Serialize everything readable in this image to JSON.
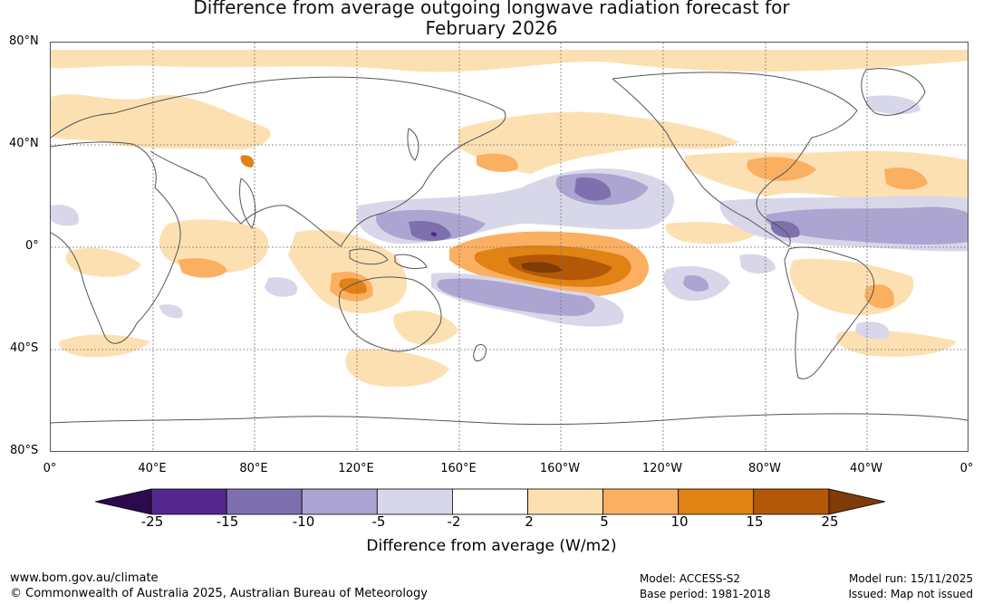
{
  "title_line1": "Difference from average outgoing longwave radiation forecast for",
  "title_line2": "February 2026",
  "lat_labels": [
    "80°N",
    "40°N",
    "0°",
    "40°S",
    "80°S"
  ],
  "lon_labels": [
    "0°",
    "40°E",
    "80°E",
    "120°E",
    "160°E",
    "160°W",
    "120°W",
    "80°W",
    "40°W",
    "0°"
  ],
  "colorbar": {
    "ticks": [
      "-25",
      "-15",
      "-10",
      "-5",
      "-2",
      "2",
      "5",
      "10",
      "15",
      "25"
    ],
    "colors": [
      "#2d0a4e",
      "#54278f",
      "#7e6fae",
      "#aca5d1",
      "#d8d7ea",
      "#ffffff",
      "#fde0b2",
      "#fbb061",
      "#e08214",
      "#b35806",
      "#7f3b08"
    ],
    "label": "Difference from average (W/m2)"
  },
  "footer": {
    "website": "www.bom.gov.au/climate",
    "copyright": "© Commonwealth of Australia 2025, Australian Bureau of Meteorology",
    "model": "Model: ACCESS-S2",
    "base_period": "Base period: 1981-2018",
    "model_run": "Model run: 15/11/2025",
    "issued": "Issued: Map not issued"
  }
}
